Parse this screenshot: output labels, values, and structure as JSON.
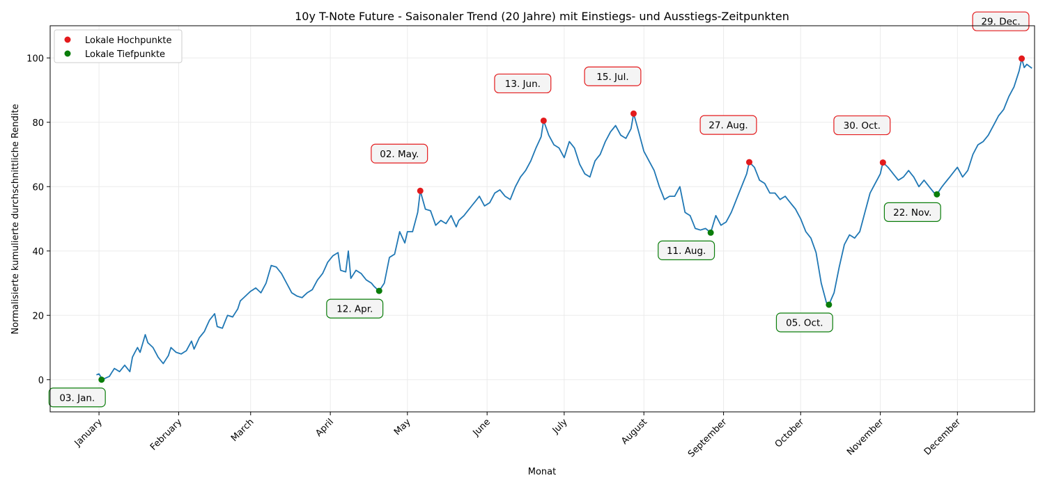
{
  "chart_data": {
    "type": "line",
    "title": "10y T-Note Future - Saisonaler Trend (20 Jahre) mit Einstiegs- und Ausstiegs-Zeitpunkten",
    "xlabel": "Monat",
    "ylabel": "Normalisierte kumulierte durchschnittliche Rendite",
    "x_unit": "day_of_year",
    "xlim": [
      -18,
      365
    ],
    "ylim": [
      -10,
      110
    ],
    "yticks": [
      0,
      20,
      40,
      60,
      80,
      100
    ],
    "months": [
      {
        "label": "January",
        "day": 1
      },
      {
        "label": "February",
        "day": 32
      },
      {
        "label": "March",
        "day": 60
      },
      {
        "label": "April",
        "day": 91
      },
      {
        "label": "May",
        "day": 121
      },
      {
        "label": "June",
        "day": 152
      },
      {
        "label": "July",
        "day": 182
      },
      {
        "label": "August",
        "day": 213
      },
      {
        "label": "September",
        "day": 244
      },
      {
        "label": "October",
        "day": 274
      },
      {
        "label": "November",
        "day": 305
      },
      {
        "label": "December",
        "day": 335
      }
    ],
    "grid": true,
    "legend_position": "top-left",
    "line_color": "#1f77b4",
    "series_keypoints": [
      [
        0,
        1.5
      ],
      [
        1,
        1.8
      ],
      [
        2,
        0.5
      ],
      [
        3,
        0.3
      ],
      [
        5,
        1
      ],
      [
        7,
        3.5
      ],
      [
        9,
        2.5
      ],
      [
        11,
        4.5
      ],
      [
        13,
        2.5
      ],
      [
        14,
        7
      ],
      [
        16,
        10
      ],
      [
        17,
        8.5
      ],
      [
        19,
        14
      ],
      [
        20,
        11.5
      ],
      [
        22,
        10
      ],
      [
        24,
        7
      ],
      [
        26,
        5
      ],
      [
        28,
        7.5
      ],
      [
        29,
        10
      ],
      [
        31,
        8.5
      ],
      [
        33,
        8
      ],
      [
        35,
        9
      ],
      [
        37,
        12
      ],
      [
        38,
        9.5
      ],
      [
        40,
        13
      ],
      [
        42,
        15
      ],
      [
        44,
        18.5
      ],
      [
        46,
        20.5
      ],
      [
        47,
        16.5
      ],
      [
        49,
        16
      ],
      [
        51,
        20
      ],
      [
        53,
        19.5
      ],
      [
        55,
        22
      ],
      [
        56,
        24.5
      ],
      [
        58,
        26
      ],
      [
        60,
        27.5
      ],
      [
        62,
        28.5
      ],
      [
        64,
        27
      ],
      [
        66,
        30
      ],
      [
        68,
        35.5
      ],
      [
        70,
        35
      ],
      [
        72,
        33
      ],
      [
        74,
        30
      ],
      [
        76,
        27
      ],
      [
        78,
        26
      ],
      [
        80,
        25.5
      ],
      [
        82,
        27
      ],
      [
        84,
        28
      ],
      [
        86,
        31
      ],
      [
        88,
        33
      ],
      [
        90,
        36.5
      ],
      [
        92,
        38.5
      ],
      [
        94,
        39.5
      ],
      [
        95,
        34
      ],
      [
        97,
        33.5
      ],
      [
        98,
        40
      ],
      [
        99,
        31.5
      ],
      [
        101,
        34
      ],
      [
        103,
        33
      ],
      [
        105,
        31
      ],
      [
        107,
        30
      ],
      [
        108,
        29
      ],
      [
        110,
        27.6
      ],
      [
        112,
        30
      ],
      [
        114,
        38
      ],
      [
        116,
        39
      ],
      [
        118,
        46
      ],
      [
        120,
        42.5
      ],
      [
        121,
        46
      ],
      [
        123,
        46
      ],
      [
        125,
        52
      ],
      [
        126,
        58.7
      ],
      [
        128,
        53
      ],
      [
        130,
        52.5
      ],
      [
        132,
        48
      ],
      [
        134,
        49.5
      ],
      [
        136,
        48.5
      ],
      [
        138,
        51
      ],
      [
        140,
        47.5
      ],
      [
        141,
        49.5
      ],
      [
        143,
        51
      ],
      [
        145,
        53
      ],
      [
        147,
        55
      ],
      [
        149,
        57
      ],
      [
        151,
        54
      ],
      [
        153,
        55
      ],
      [
        155,
        58
      ],
      [
        157,
        59
      ],
      [
        159,
        57
      ],
      [
        161,
        56
      ],
      [
        163,
        60
      ],
      [
        165,
        63
      ],
      [
        167,
        65
      ],
      [
        169,
        68
      ],
      [
        171,
        72
      ],
      [
        173,
        75.5
      ],
      [
        174,
        80.5
      ],
      [
        176,
        76
      ],
      [
        178,
        73
      ],
      [
        180,
        72
      ],
      [
        182,
        69
      ],
      [
        184,
        74
      ],
      [
        186,
        72
      ],
      [
        188,
        67
      ],
      [
        190,
        64
      ],
      [
        192,
        63
      ],
      [
        194,
        68
      ],
      [
        196,
        70
      ],
      [
        198,
        74
      ],
      [
        200,
        77
      ],
      [
        202,
        79
      ],
      [
        204,
        76
      ],
      [
        206,
        75
      ],
      [
        208,
        78
      ],
      [
        209,
        82.7
      ],
      [
        211,
        77
      ],
      [
        213,
        71
      ],
      [
        215,
        68
      ],
      [
        217,
        65
      ],
      [
        219,
        60
      ],
      [
        221,
        56
      ],
      [
        223,
        57
      ],
      [
        225,
        57
      ],
      [
        227,
        60
      ],
      [
        229,
        52
      ],
      [
        231,
        51
      ],
      [
        233,
        47
      ],
      [
        235,
        46.5
      ],
      [
        237,
        47
      ],
      [
        239,
        45.7
      ],
      [
        241,
        51
      ],
      [
        243,
        48
      ],
      [
        245,
        49
      ],
      [
        247,
        52
      ],
      [
        249,
        56
      ],
      [
        251,
        60
      ],
      [
        253,
        64
      ],
      [
        254,
        67.6
      ],
      [
        256,
        66
      ],
      [
        258,
        62
      ],
      [
        260,
        61
      ],
      [
        262,
        58
      ],
      [
        264,
        58
      ],
      [
        266,
        56
      ],
      [
        268,
        57
      ],
      [
        270,
        55
      ],
      [
        272,
        53
      ],
      [
        274,
        50
      ],
      [
        276,
        46
      ],
      [
        278,
        44
      ],
      [
        280,
        39.5
      ],
      [
        282,
        30
      ],
      [
        284,
        24
      ],
      [
        285,
        23.3
      ],
      [
        287,
        27
      ],
      [
        289,
        35
      ],
      [
        291,
        42
      ],
      [
        293,
        45
      ],
      [
        295,
        44
      ],
      [
        297,
        46
      ],
      [
        299,
        52
      ],
      [
        301,
        58
      ],
      [
        303,
        61
      ],
      [
        305,
        64
      ],
      [
        306,
        67.5
      ],
      [
        308,
        66
      ],
      [
        310,
        64
      ],
      [
        312,
        62
      ],
      [
        314,
        63
      ],
      [
        316,
        65
      ],
      [
        318,
        63
      ],
      [
        320,
        60
      ],
      [
        322,
        62
      ],
      [
        324,
        60
      ],
      [
        326,
        58
      ],
      [
        327,
        57.6
      ],
      [
        329,
        60
      ],
      [
        331,
        62
      ],
      [
        333,
        64
      ],
      [
        335,
        66
      ],
      [
        337,
        63
      ],
      [
        339,
        65
      ],
      [
        341,
        70
      ],
      [
        343,
        73
      ],
      [
        345,
        74
      ],
      [
        347,
        76
      ],
      [
        349,
        79
      ],
      [
        351,
        82
      ],
      [
        353,
        84
      ],
      [
        355,
        88
      ],
      [
        357,
        91
      ],
      [
        359,
        96
      ],
      [
        360,
        99.8
      ],
      [
        361,
        97
      ],
      [
        362,
        98
      ],
      [
        364,
        96.8
      ]
    ],
    "highs": [
      {
        "day": 126,
        "value": 58.7,
        "label": "02. May."
      },
      {
        "day": 174,
        "value": 80.5,
        "label": "13. Jun."
      },
      {
        "day": 209,
        "value": 82.7,
        "label": "15. Jul."
      },
      {
        "day": 254,
        "value": 67.6,
        "label": "27. Aug."
      },
      {
        "day": 306,
        "value": 67.5,
        "label": "30. Oct."
      },
      {
        "day": 360,
        "value": 99.8,
        "label": "29. Dec."
      }
    ],
    "lows": [
      {
        "day": 2,
        "value": 0,
        "label": "03. Jan."
      },
      {
        "day": 110,
        "value": 27.6,
        "label": "12. Apr."
      },
      {
        "day": 239,
        "value": 45.7,
        "label": "11. Aug."
      },
      {
        "day": 285,
        "value": 23.3,
        "label": "05. Oct."
      },
      {
        "day": 327,
        "value": 57.6,
        "label": "22. Nov."
      }
    ],
    "legend": [
      {
        "label": "Lokale Hochpunkte",
        "color": "#e31a1c"
      },
      {
        "label": "Lokale Tiefpunkte",
        "color": "#0a7d0a"
      }
    ]
  }
}
